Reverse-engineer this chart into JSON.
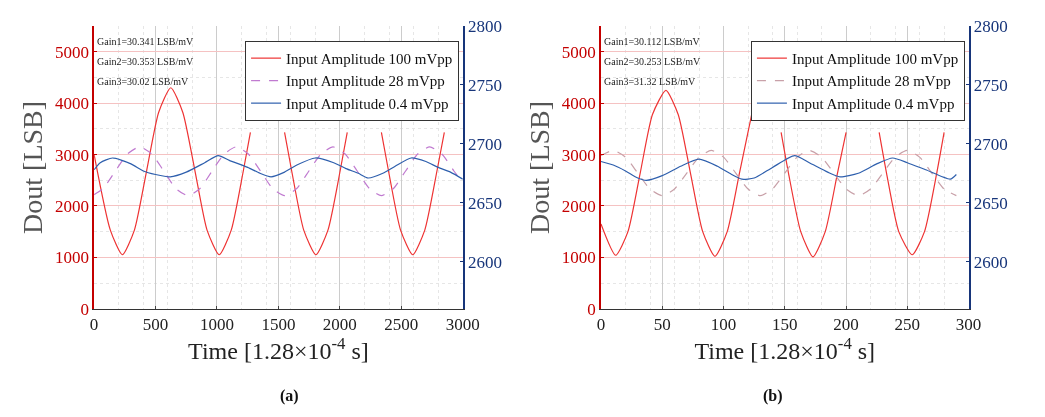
{
  "chart_data": [
    {
      "type": "line",
      "xlabel": "Time [1.28×10$^{-4}$ s]",
      "ylabel": "Dout [LSB]",
      "xlim": [
        0,
        3000
      ],
      "xticks": [
        0,
        500,
        1000,
        1500,
        2000,
        2500,
        3000
      ],
      "ylim": [
        0,
        5500
      ],
      "yticks": [
        0,
        1000,
        2000,
        3000,
        4000,
        5000
      ],
      "y2lim": [
        2560,
        2800
      ],
      "y2ticks": [
        2600,
        2650,
        2700,
        2750,
        2800
      ],
      "grid": true,
      "legend": "top right",
      "annotations": [
        "Gain1=30.341 LSB/mV",
        "Gain2=30.353 LSB/mV",
        "Gain3=30.02 LSB/mV",
        "(a)"
      ],
      "series": [
        {
          "name": "Input Amplitude 100 mVpp",
          "color": "#ee3333",
          "line_style": "solid",
          "x": [
            0,
            132,
            230,
            328,
            427,
            525,
            624,
            722,
            821,
            919,
            1018,
            1116,
            1214,
            1272,
            1313,
            1411,
            1509,
            1550,
            1608,
            1706,
            1805,
            1903,
            2002,
            2060,
            2100,
            2199,
            2297,
            2338,
            2396,
            2494,
            2593,
            2691,
            2790,
            2850
          ],
          "values": [
            3000,
            1530,
            1050,
            1530,
            2680,
            3820,
            4300,
            3820,
            2680,
            1530,
            1050,
            1530,
            2680,
            3430,
            null,
            null,
            null,
            3430,
            2680,
            1530,
            1050,
            1530,
            2680,
            3430,
            null,
            null,
            null,
            3430,
            2680,
            1530,
            1050,
            1530,
            2680,
            3430
          ]
        },
        {
          "name": "Input Amplitude 28 mVpp",
          "color": "#c07ad0",
          "line_style": "dashed",
          "x": [
            0,
            74,
            173,
            271,
            370,
            468,
            567,
            665,
            763,
            862,
            960,
            1059,
            1157,
            1255,
            1354,
            1452,
            1551,
            1649,
            1748,
            1846,
            1944,
            2043,
            2141,
            2240,
            2338,
            2436,
            2535,
            2633,
            2731,
            2830,
            2928,
            3000
          ],
          "values": [
            2220,
            2340,
            2680,
            3010,
            3150,
            3010,
            2680,
            2340,
            2200,
            2340,
            2680,
            3010,
            3150,
            3010,
            2680,
            2340,
            2200,
            2340,
            2680,
            3010,
            3150,
            3010,
            2680,
            2340,
            2200,
            2340,
            2680,
            3010,
            3150,
            3010,
            2680,
            2450
          ]
        },
        {
          "name": "Input Amplitude 0.4 mVpp",
          "color": "#2e5fad",
          "line_style": "solid",
          "axis": "y2",
          "x": [
            0,
            50,
            150,
            300,
            400,
            500,
            620,
            750,
            900,
            1010,
            1100,
            1250,
            1350,
            1440,
            1550,
            1650,
            1800,
            1950,
            2050,
            2150,
            2230,
            2350,
            2450,
            2580,
            2700,
            2800,
            2900,
            3000
          ],
          "values": [
            2678,
            2684,
            2688,
            2683,
            2677,
            2674,
            2672,
            2676,
            2684,
            2690,
            2686,
            2680,
            2675,
            2672,
            2676,
            2682,
            2688,
            2684,
            2679,
            2675,
            2671,
            2675,
            2681,
            2688,
            2685,
            2680,
            2676,
            2670
          ]
        }
      ]
    },
    {
      "type": "line",
      "xlabel": "Time [1.28×10$^{-4}$ s]",
      "ylabel": "Dout [LSB]",
      "xlim": [
        0,
        300
      ],
      "xticks": [
        0,
        50,
        100,
        150,
        200,
        250,
        300
      ],
      "ylim": [
        0,
        5500
      ],
      "yticks": [
        0,
        1000,
        2000,
        3000,
        4000,
        5000
      ],
      "y2lim": [
        2560,
        2800
      ],
      "y2ticks": [
        2600,
        2650,
        2700,
        2750,
        2800
      ],
      "grid": true,
      "legend": "top right",
      "annotations": [
        "Gain1=30.112 LSB/mV",
        "Gain2=30.253 LSB/mV",
        "Gain3=31.32 LSB/mV",
        "(b)"
      ],
      "series": [
        {
          "name": "Input Amplitude 100 mVpp",
          "color": "#ee3333",
          "line_style": "solid",
          "x": [
            0,
            12,
            22,
            32,
            42,
            53,
            63,
            73,
            83,
            93,
            103,
            113,
            123,
            133,
            143,
            147,
            153,
            163,
            173,
            183,
            193,
            200,
            203,
            213,
            223,
            227,
            233,
            243,
            254,
            264,
            274,
            280
          ],
          "values": [
            1650,
            1040,
            1500,
            2640,
            3780,
            4250,
            3780,
            2640,
            1500,
            1020,
            1500,
            2640,
            3780,
            null,
            null,
            3430,
            2640,
            1500,
            1010,
            1500,
            2640,
            3430,
            null,
            null,
            null,
            3430,
            2640,
            1500,
            1050,
            1500,
            2640,
            3430
          ]
        },
        {
          "name": "Input Amplitude 28 mVpp",
          "color": "#c8a0a8",
          "line_style": "dashed",
          "x": [
            0,
            10,
            20,
            30,
            40,
            50,
            60,
            70,
            80,
            90,
            100,
            110,
            120,
            130,
            140,
            150,
            160,
            170,
            180,
            190,
            200,
            210,
            220,
            230,
            240,
            250,
            260,
            270,
            280,
            290
          ],
          "values": [
            2980,
            3080,
            2950,
            2640,
            2330,
            2200,
            2330,
            2640,
            2950,
            3080,
            2950,
            2640,
            2330,
            2200,
            2330,
            2640,
            2950,
            3080,
            2950,
            2640,
            2330,
            2200,
            2330,
            2640,
            2950,
            3080,
            2950,
            2640,
            2330,
            2200
          ]
        },
        {
          "name": "Input Amplitude 0.4 mVpp",
          "color": "#2e5fad",
          "line_style": "solid",
          "axis": "y2",
          "x": [
            0,
            10,
            20,
            30,
            37,
            50,
            65,
            80,
            95,
            105,
            115,
            125,
            140,
            158,
            170,
            185,
            195,
            210,
            225,
            238,
            250,
            265,
            285,
            290
          ],
          "values": [
            2685,
            2682,
            2677,
            2671,
            2669,
            2673,
            2681,
            2687,
            2681,
            2675,
            2670,
            2671,
            2680,
            2690,
            2684,
            2676,
            2672,
            2675,
            2683,
            2688,
            2684,
            2678,
            2670,
            2674
          ]
        }
      ]
    }
  ]
}
